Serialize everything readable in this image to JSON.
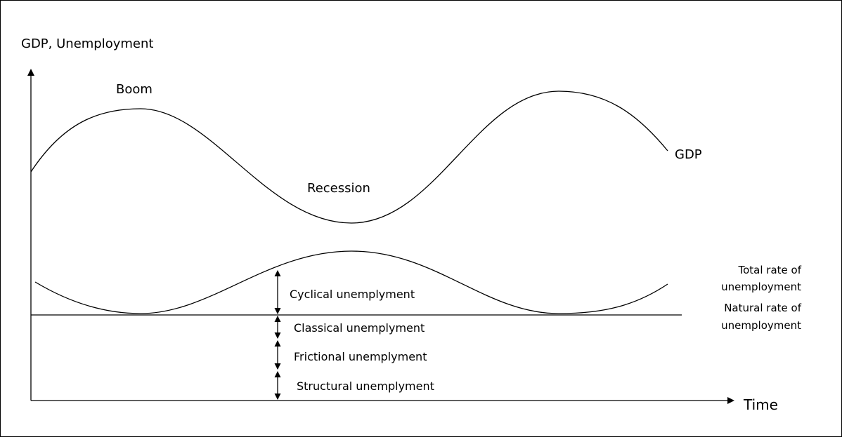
{
  "axes": {
    "y_label": "GDP, Unemployment",
    "x_label": "Time"
  },
  "gdp_curve": {
    "label": "GDP",
    "peak_label": "Boom",
    "trough_label": "Recession"
  },
  "total_rate_label": [
    "Total rate of",
    "unemployment"
  ],
  "natural_rate_label": [
    "Natural rate of",
    "unemployment"
  ],
  "components": [
    "Cyclical unemplyment",
    "Classical unemplyment",
    "Frictional unemplyment",
    "Structural unemplyment"
  ]
}
